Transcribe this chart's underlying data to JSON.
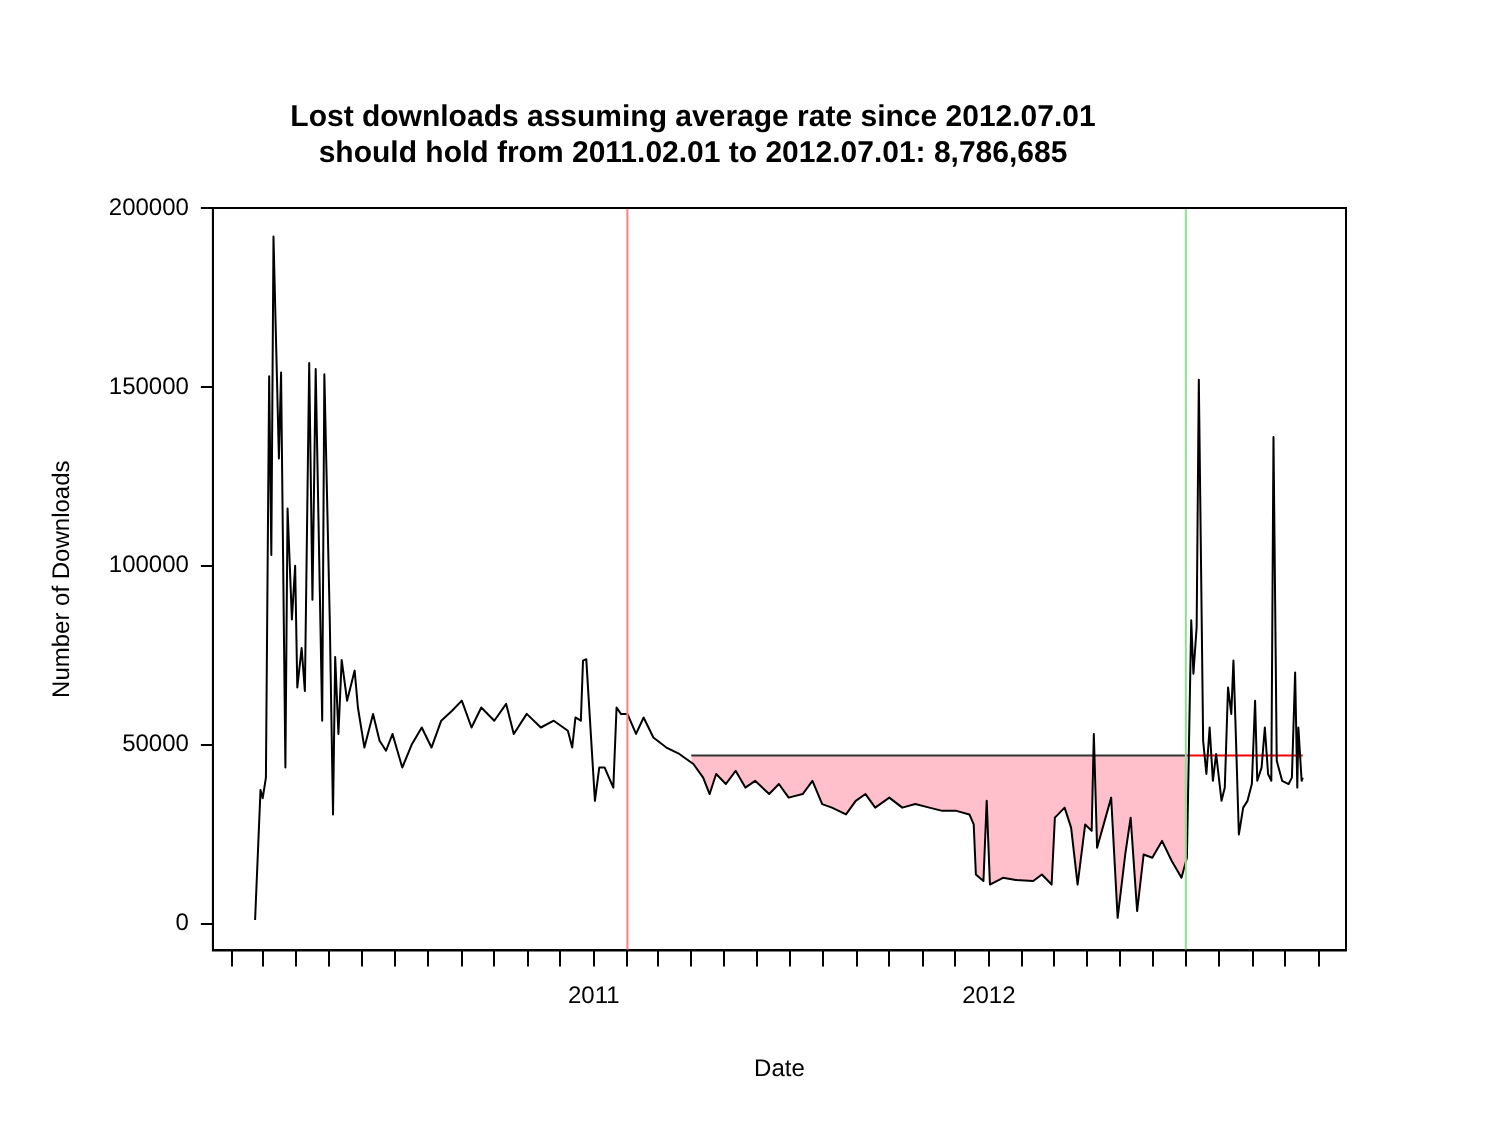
{
  "chart_data": {
    "type": "line",
    "title": "Lost downloads assuming average rate since 2012.07.01\nshould hold from 2011.02.01 to 2012.07.01: 8,786,685",
    "xlabel": "Date",
    "ylabel": "Number of Downloads",
    "legend": false,
    "grid": false,
    "xlim": [
      "2010-01-14",
      "2012-11-26"
    ],
    "ylim": [
      -7500,
      200000
    ],
    "xticks": [
      {
        "value": "2010-02-01",
        "label": null
      },
      {
        "value": "2010-03-01",
        "label": null
      },
      {
        "value": "2010-04-01",
        "label": null
      },
      {
        "value": "2010-05-01",
        "label": null
      },
      {
        "value": "2010-06-01",
        "label": null
      },
      {
        "value": "2010-07-01",
        "label": null
      },
      {
        "value": "2010-08-01",
        "label": null
      },
      {
        "value": "2010-09-01",
        "label": null
      },
      {
        "value": "2010-10-01",
        "label": null
      },
      {
        "value": "2010-11-01",
        "label": null
      },
      {
        "value": "2010-12-01",
        "label": null
      },
      {
        "value": "2011-01-01",
        "label": "2011"
      },
      {
        "value": "2011-02-01",
        "label": null
      },
      {
        "value": "2011-03-01",
        "label": null
      },
      {
        "value": "2011-04-01",
        "label": null
      },
      {
        "value": "2011-05-01",
        "label": null
      },
      {
        "value": "2011-06-01",
        "label": null
      },
      {
        "value": "2011-07-01",
        "label": null
      },
      {
        "value": "2011-08-01",
        "label": null
      },
      {
        "value": "2011-09-01",
        "label": null
      },
      {
        "value": "2011-10-01",
        "label": null
      },
      {
        "value": "2011-11-01",
        "label": null
      },
      {
        "value": "2011-12-01",
        "label": null
      },
      {
        "value": "2012-01-01",
        "label": "2012"
      },
      {
        "value": "2012-02-01",
        "label": null
      },
      {
        "value": "2012-03-01",
        "label": null
      },
      {
        "value": "2012-04-01",
        "label": null
      },
      {
        "value": "2012-05-01",
        "label": null
      },
      {
        "value": "2012-06-01",
        "label": null
      },
      {
        "value": "2012-07-01",
        "label": null
      },
      {
        "value": "2012-08-01",
        "label": null
      },
      {
        "value": "2012-09-01",
        "label": null
      },
      {
        "value": "2012-10-01",
        "label": null
      },
      {
        "value": "2012-11-01",
        "label": null
      }
    ],
    "yticks": [
      0,
      50000,
      100000,
      150000,
      200000
    ],
    "ref_lines": [
      {
        "axis": "x",
        "value": "2011-02-01",
        "label": null,
        "color": "#ff8080"
      },
      {
        "axis": "x",
        "value": "2012-07-01",
        "label": null,
        "color": "#90e090"
      }
    ],
    "series": [
      {
        "type": "line",
        "color": "#000000",
        "x": [
          "2010-02-22",
          "2010-02-27",
          "2010-03-01",
          "2010-03-04",
          "2010-03-07",
          "2010-03-09",
          "2010-03-11",
          "2010-03-16",
          "2010-03-18",
          "2010-03-22",
          "2010-03-24",
          "2010-03-28",
          "2010-03-31",
          "2010-04-02",
          "2010-04-06",
          "2010-04-09",
          "2010-04-13",
          "2010-04-16",
          "2010-04-19",
          "2010-04-25",
          "2010-04-27",
          "2010-05-02",
          "2010-05-05",
          "2010-05-07",
          "2010-05-10",
          "2010-05-13",
          "2010-05-18",
          "2010-05-25",
          "2010-05-28",
          "2010-06-03",
          "2010-06-11",
          "2010-06-17",
          "2010-06-23",
          "2010-06-29",
          "2010-07-08",
          "2010-07-17",
          "2010-07-26",
          "2010-08-04",
          "2010-08-13",
          "2010-08-23",
          "2010-09-01",
          "2010-09-10",
          "2010-09-19",
          "2010-10-01",
          "2010-10-12",
          "2010-10-19",
          "2010-10-31",
          "2010-11-13",
          "2010-11-25",
          "2010-12-08",
          "2010-12-12",
          "2010-12-15",
          "2010-12-20",
          "2010-12-22",
          "2010-12-25",
          "2011-01-02",
          "2011-01-06",
          "2011-01-11",
          "2011-01-19",
          "2011-01-22",
          "2011-01-26",
          "2011-02-01",
          "2011-02-09",
          "2011-02-16",
          "2011-02-25",
          "2011-03-09",
          "2011-03-21",
          "2011-04-03",
          "2011-04-12",
          "2011-04-18",
          "2011-04-24",
          "2011-05-03",
          "2011-05-12",
          "2011-05-21",
          "2011-05-30",
          "2011-06-12",
          "2011-06-21",
          "2011-06-30",
          "2011-07-13",
          "2011-07-22",
          "2011-07-31",
          "2011-08-09",
          "2011-08-22",
          "2011-08-31",
          "2011-09-09",
          "2011-09-18",
          "2011-10-01",
          "2011-10-13",
          "2011-10-25",
          "2011-11-07",
          "2011-11-19",
          "2011-12-02",
          "2011-12-14",
          "2011-12-18",
          "2011-12-20",
          "2011-12-27",
          "2011-12-30",
          "2012-01-02",
          "2012-01-14",
          "2012-01-26",
          "2012-02-11",
          "2012-02-19",
          "2012-02-28",
          "2012-03-02",
          "2012-03-11",
          "2012-03-17",
          "2012-03-23",
          "2012-03-30",
          "2012-04-05",
          "2012-04-07",
          "2012-04-10",
          "2012-04-17",
          "2012-04-23",
          "2012-04-29",
          "2012-05-06",
          "2012-05-11",
          "2012-05-17",
          "2012-05-23",
          "2012-05-31",
          "2012-06-09",
          "2012-06-18",
          "2012-06-27",
          "2012-07-02",
          "2012-07-06",
          "2012-07-08",
          "2012-07-11",
          "2012-07-13",
          "2012-07-17",
          "2012-07-20",
          "2012-07-23",
          "2012-07-26",
          "2012-07-29",
          "2012-08-03",
          "2012-08-06",
          "2012-08-09",
          "2012-08-12",
          "2012-08-14",
          "2012-08-16",
          "2012-08-19",
          "2012-08-23",
          "2012-08-27",
          "2012-08-31",
          "2012-09-03",
          "2012-09-05",
          "2012-09-09",
          "2012-09-12",
          "2012-09-15",
          "2012-09-18",
          "2012-09-20",
          "2012-09-23",
          "2012-09-28",
          "2012-10-04",
          "2012-10-07",
          "2012-10-10",
          "2012-10-12",
          "2012-10-13",
          "2012-10-16",
          "2012-10-17"
        ],
        "values": [
          1000,
          37300,
          35000,
          40800,
          153000,
          103000,
          192000,
          130000,
          154000,
          43600,
          116000,
          85000,
          100000,
          66000,
          77000,
          65000,
          156700,
          90500,
          155000,
          56700,
          153500,
          84800,
          30500,
          74500,
          53000,
          73700,
          62300,
          70700,
          60400,
          49200,
          58600,
          51100,
          48300,
          53000,
          43600,
          50200,
          54800,
          49200,
          56700,
          59500,
          62300,
          54800,
          60400,
          56700,
          61400,
          53000,
          58600,
          54800,
          56700,
          53900,
          49200,
          57600,
          56700,
          73500,
          73900,
          34300,
          43600,
          43600,
          38000,
          60400,
          58600,
          58600,
          53000,
          57600,
          52000,
          49200,
          47400,
          44600,
          40800,
          36200,
          41800,
          39000,
          42700,
          38000,
          39900,
          36200,
          39000,
          35200,
          36200,
          39900,
          33400,
          32400,
          30500,
          34300,
          36200,
          32400,
          35200,
          32400,
          33400,
          32400,
          31500,
          31500,
          30500,
          27700,
          13700,
          11900,
          34300,
          10900,
          12800,
          12200,
          11900,
          13700,
          10900,
          29600,
          32400,
          26800,
          10900,
          27700,
          25900,
          53000,
          21200,
          28700,
          35200,
          1600,
          19300,
          29600,
          3500,
          19300,
          18400,
          23100,
          17500,
          12800,
          18400,
          84800,
          69800,
          82900,
          152000,
          51100,
          41800,
          54800,
          39900,
          47400,
          34300,
          38000,
          66000,
          58600,
          73500,
          54800,
          24900,
          32400,
          34300,
          39000,
          62300,
          39900,
          43600,
          54800,
          41800,
          39900,
          136000,
          45500,
          39900,
          39000,
          40800,
          70200,
          38000,
          54800,
          39900,
          40800
        ]
      },
      {
        "type": "line",
        "color": "#333333",
        "x": [
          "2011-04-01",
          "2011-04-03",
          "2011-04-12",
          "2011-04-18",
          "2011-04-24",
          "2011-05-03",
          "2011-05-12",
          "2011-05-21",
          "2011-05-30",
          "2011-06-12",
          "2011-06-21",
          "2011-06-30",
          "2011-07-13",
          "2011-07-22",
          "2011-07-31",
          "2011-08-09",
          "2011-08-22",
          "2011-08-31",
          "2011-09-09",
          "2011-09-18",
          "2011-10-01",
          "2011-10-13",
          "2011-10-25",
          "2011-11-07",
          "2011-11-19",
          "2011-12-02",
          "2011-12-14",
          "2011-12-18",
          "2011-12-20",
          "2011-12-27",
          "2011-12-30",
          "2012-01-02",
          "2012-01-14",
          "2012-01-26",
          "2012-02-11",
          "2012-02-19",
          "2012-02-28",
          "2012-03-02",
          "2012-03-11",
          "2012-03-17",
          "2012-03-23",
          "2012-03-30",
          "2012-04-05",
          "2012-04-07",
          "2012-04-10",
          "2012-04-17",
          "2012-04-23",
          "2012-04-29",
          "2012-05-06",
          "2012-05-11",
          "2012-05-17",
          "2012-05-23",
          "2012-05-31",
          "2012-06-09",
          "2012-06-18",
          "2012-06-27",
          "2012-07-01"
        ],
        "values": [
          47000,
          47000,
          47000,
          47000,
          47000,
          47000,
          47000,
          47000,
          47000,
          47000,
          47000,
          47000,
          47000,
          47000,
          47000,
          47000,
          47000,
          47000,
          47000,
          47000,
          47000,
          47000,
          47000,
          47000,
          47000,
          47000,
          47000,
          47000,
          47000,
          47000,
          47000,
          47000,
          47000,
          47000,
          47000,
          47000,
          47000,
          47000,
          47000,
          47000,
          47000,
          47000,
          47000,
          47000,
          47000,
          47000,
          47000,
          47000,
          47000,
          47000,
          47000,
          47000,
          47000,
          47000,
          47000,
          47000,
          47000
        ],
        "upper": [
          47000,
          47000,
          47000,
          47000,
          47000,
          47000,
          47000,
          47000,
          47000,
          47000,
          47000,
          47000,
          47000,
          47000,
          47000,
          47000,
          47000,
          47000,
          47000,
          47000,
          47000,
          47000,
          47000,
          47000,
          47000,
          47000,
          47000,
          47000,
          47000,
          47000,
          47000,
          47000,
          47000,
          47000,
          47000,
          47000,
          47000,
          47000,
          47000,
          47000,
          47000,
          47000,
          47000,
          47000,
          47000,
          47000,
          47000,
          47000,
          47000,
          47000,
          47000,
          47000,
          47000,
          47000,
          47000,
          47000,
          47000
        ],
        "lower": [
          44800,
          44600,
          40800,
          36200,
          41800,
          39000,
          42700,
          38000,
          39900,
          36200,
          39000,
          35200,
          36200,
          39900,
          33400,
          32400,
          30500,
          34300,
          36200,
          32400,
          35200,
          32400,
          33400,
          32400,
          31500,
          31500,
          30500,
          27700,
          13700,
          11900,
          34300,
          10900,
          12800,
          12200,
          11900,
          13700,
          10900,
          29600,
          32400,
          26800,
          10900,
          27700,
          25900,
          53000,
          21200,
          28700,
          35200,
          1600,
          19300,
          29600,
          3500,
          19300,
          18400,
          23100,
          17500,
          12800,
          17300
        ]
      },
      {
        "type": "line",
        "color": "#ff0000",
        "x": [
          "2012-07-01",
          "2012-10-17"
        ],
        "values": [
          47000,
          47000
        ]
      }
    ]
  }
}
